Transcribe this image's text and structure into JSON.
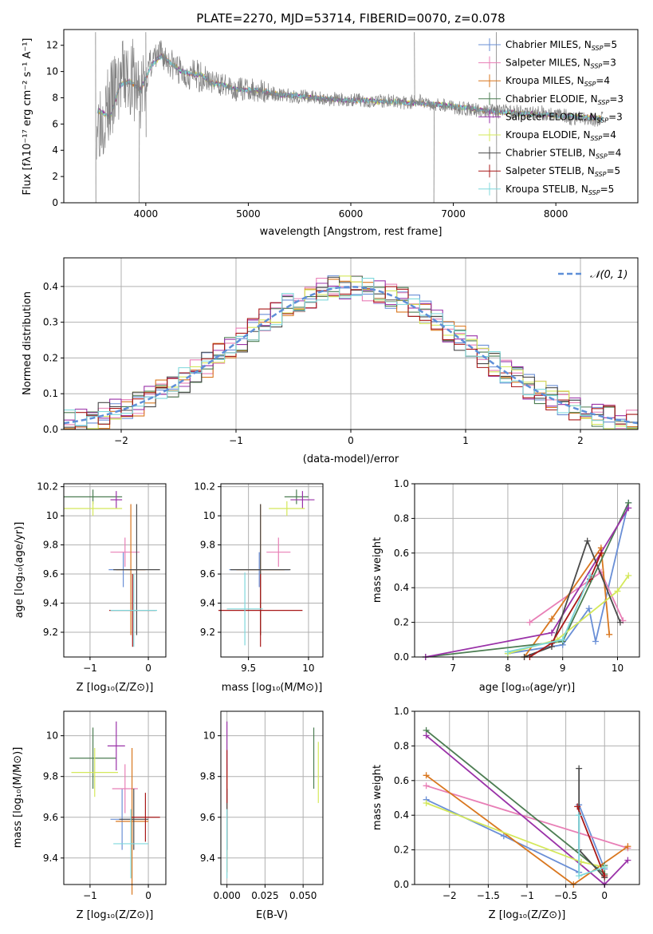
{
  "colors": {
    "c0": "#6a8fd6",
    "c1": "#e87fb6",
    "c2": "#d9771f",
    "c3": "#4c7d52",
    "c4": "#9a32a8",
    "c5": "#d4e85a",
    "c6": "#4a4a4a",
    "c7": "#a81818",
    "c8": "#7fd8dc",
    "grid": "#b0b0b0"
  },
  "legend_spectrum": [
    {
      "prefix": "Chabrier MILES, N",
      "sub": "SSP",
      "suffix": "=5",
      "color": "c0"
    },
    {
      "prefix": "Salpeter MILES, N",
      "sub": "SSP",
      "suffix": "=3",
      "color": "c1"
    },
    {
      "prefix": "Kroupa MILES, N",
      "sub": "SSP",
      "suffix": "=4",
      "color": "c2"
    },
    {
      "prefix": "Chabrier ELODIE, N",
      "sub": "SSP",
      "suffix": "=3",
      "color": "c3"
    },
    {
      "prefix": "Salpeter ELODIE, N",
      "sub": "SSP",
      "suffix": "=3",
      "color": "c4"
    },
    {
      "prefix": "Kroupa ELODIE, N",
      "sub": "SSP",
      "suffix": "=4",
      "color": "c5"
    },
    {
      "prefix": "Chabrier STELIB, N",
      "sub": "SSP",
      "suffix": "=4",
      "color": "c6"
    },
    {
      "prefix": "Salpeter STELIB, N",
      "sub": "SSP",
      "suffix": "=5",
      "color": "c7"
    },
    {
      "prefix": "Kroupa STELIB, N",
      "sub": "SSP",
      "suffix": "=5",
      "color": "c8"
    }
  ],
  "chart_data": [
    {
      "id": "spectrum",
      "type": "line",
      "title": "PLATE=2270, MJD=53714, FIBERID=0070, z=0.078",
      "xlabel": "wavelength [Angstrom, rest frame]",
      "ylabel": "Flux [fλ10⁻¹⁷ erg cm⁻² s⁻¹ A⁻¹]",
      "xlim": [
        3200,
        8800
      ],
      "ylim": [
        0,
        13.2
      ],
      "xticks": [
        4000,
        5000,
        6000,
        7000,
        8000
      ],
      "yticks": [
        0,
        2,
        4,
        6,
        8,
        10,
        12
      ],
      "series": [
        {
          "name": "observed spectrum",
          "color": "#808080",
          "x": [
            3550,
            3650,
            3750,
            3850,
            3950,
            4050,
            4150,
            4250,
            4350,
            4450,
            4550,
            4650,
            4750,
            4850,
            4950,
            5050,
            5150,
            5250,
            5350,
            5450,
            5550,
            5650,
            5750,
            5850,
            5950,
            6050,
            6150,
            6250,
            6350,
            6450,
            6550,
            6650,
            6750,
            6850,
            6950,
            7050,
            7150,
            7250,
            7350,
            7450,
            7550,
            7650,
            7750,
            7850,
            7950,
            8050,
            8150,
            8250,
            8350,
            8450
          ],
          "y": [
            6.5,
            7.4,
            9.3,
            9.6,
            8.2,
            10.7,
            11.3,
            10.6,
            9.9,
            9.8,
            9.6,
            9.2,
            9.0,
            8.6,
            8.7,
            8.6,
            8.5,
            8.3,
            8.2,
            8.1,
            8.1,
            8.0,
            7.9,
            7.9,
            7.8,
            7.8,
            7.8,
            7.8,
            7.8,
            7.7,
            7.6,
            7.8,
            7.6,
            7.5,
            7.4,
            7.2,
            7.2,
            7.0,
            7.0,
            6.9,
            7.0,
            6.9,
            6.8,
            6.9,
            6.7,
            6.8,
            6.4,
            6.5,
            6.3,
            6.4
          ]
        },
        {
          "name": "model",
          "color": "#7fd8dc",
          "x": [
            3550,
            3650,
            3750,
            3850,
            3950,
            4050,
            4150,
            4250,
            4350,
            4450,
            4550,
            4650,
            4750,
            4850,
            4950,
            5050,
            5150,
            5250,
            5350,
            5450,
            5550,
            5650,
            5750,
            5850,
            5950,
            6050,
            6150,
            6250,
            6350,
            6450,
            6550,
            6650,
            6750,
            6850,
            6950,
            7050,
            7150,
            7250,
            7350,
            7450,
            7550,
            7650,
            7750,
            7850,
            7950,
            8050,
            8150,
            8250,
            8350,
            8450
          ],
          "y": [
            7.0,
            6.5,
            9.0,
            9.2,
            8.6,
            10.4,
            11.2,
            10.6,
            10.0,
            9.8,
            9.7,
            9.1,
            9.0,
            8.7,
            8.6,
            8.6,
            8.5,
            8.3,
            8.2,
            8.2,
            8.1,
            8.0,
            7.9,
            7.9,
            7.8,
            7.8,
            7.8,
            7.7,
            7.7,
            7.7,
            7.6,
            7.6,
            7.5,
            7.5,
            7.4,
            7.3,
            7.2,
            7.1,
            7.0,
            6.9,
            6.9,
            6.8,
            6.8,
            6.7,
            6.7,
            6.6,
            6.6,
            6.5,
            6.5,
            6.4
          ]
        }
      ]
    },
    {
      "id": "residuals",
      "type": "line",
      "xlabel": "(data-model)/error",
      "ylabel": "Normed distribution",
      "xlim": [
        -2.5,
        2.5
      ],
      "ylim": [
        0,
        0.48
      ],
      "xticks": [
        -2,
        -1,
        0,
        1,
        2
      ],
      "yticks": [
        0.0,
        0.1,
        0.2,
        0.3,
        0.4
      ],
      "legend": "𝒩(0, 1)",
      "series": [
        {
          "name": "normal",
          "mu": 0,
          "sigma": 1
        }
      ]
    },
    {
      "id": "age-vs-Z",
      "type": "scatter",
      "xlabel": "Z [log₁₀(Z/Z⊙)]",
      "ylabel": "age  [log₁₀(age/yr)]",
      "xlim": [
        -1.45,
        0.3
      ],
      "ylim": [
        9.03,
        10.22
      ],
      "xticks": [
        -1,
        0
      ],
      "yticks": [
        9.2,
        9.4,
        9.6,
        9.8,
        10.0,
        10.2
      ],
      "points": [
        {
          "x": -0.43,
          "y": 9.63,
          "xe": 0.25,
          "ye": 0.12,
          "color": "c0"
        },
        {
          "x": -0.4,
          "y": 9.75,
          "xe": 0.25,
          "ye": 0.1,
          "color": "c1"
        },
        {
          "x": -0.3,
          "y": 9.63,
          "xe": 0.25,
          "ye": 0.45,
          "color": "c2"
        },
        {
          "x": -0.95,
          "y": 10.13,
          "xe": 0.5,
          "ye": 0.05,
          "color": "c3"
        },
        {
          "x": -0.55,
          "y": 10.11,
          "xe": 0.1,
          "ye": 0.06,
          "color": "c4"
        },
        {
          "x": -0.95,
          "y": 10.05,
          "xe": 0.5,
          "ye": 0.05,
          "color": "c5"
        },
        {
          "x": -0.2,
          "y": 9.63,
          "xe": 0.4,
          "ye": 0.45,
          "color": "c6"
        },
        {
          "x": -0.27,
          "y": 9.35,
          "xe": 0.4,
          "ye": 0.25,
          "color": "c7"
        },
        {
          "x": -0.25,
          "y": 9.35,
          "xe": 0.4,
          "ye": 0.25,
          "color": "c8"
        }
      ]
    },
    {
      "id": "age-vs-mass",
      "type": "scatter",
      "xlabel": "mass [log₁₀(M/M⊙)]",
      "xlim": [
        9.27,
        10.12
      ],
      "ylim": [
        9.03,
        10.22
      ],
      "xticks": [
        9.5,
        10.0
      ],
      "yticks": [
        9.2,
        9.4,
        9.6,
        9.8,
        10.0,
        10.2
      ],
      "points": [
        {
          "x": 9.59,
          "y": 9.63,
          "xe": 0.25,
          "ye": 0.12,
          "color": "c0"
        },
        {
          "x": 9.75,
          "y": 9.75,
          "xe": 0.1,
          "ye": 0.1,
          "color": "c1"
        },
        {
          "x": 9.6,
          "y": 9.63,
          "xe": 0.2,
          "ye": 0.45,
          "color": "c2"
        },
        {
          "x": 9.9,
          "y": 10.13,
          "xe": 0.1,
          "ye": 0.05,
          "color": "c3"
        },
        {
          "x": 9.95,
          "y": 10.11,
          "xe": 0.1,
          "ye": 0.06,
          "color": "c4"
        },
        {
          "x": 9.82,
          "y": 10.05,
          "xe": 0.15,
          "ye": 0.05,
          "color": "c5"
        },
        {
          "x": 9.6,
          "y": 9.63,
          "xe": 0.25,
          "ye": 0.45,
          "color": "c6"
        },
        {
          "x": 9.6,
          "y": 9.35,
          "xe": 0.35,
          "ye": 0.25,
          "color": "c7"
        },
        {
          "x": 9.47,
          "y": 9.36,
          "xe": 0.15,
          "ye": 0.25,
          "color": "c8"
        }
      ]
    },
    {
      "id": "massweight-vs-age",
      "type": "line",
      "xlabel": "age  [log₁₀(age/yr)]",
      "ylabel": "mass weight",
      "xlim": [
        6.3,
        10.4
      ],
      "ylim": [
        0,
        1.0
      ],
      "xticks": [
        7,
        8,
        9,
        10
      ],
      "yticks": [
        0.0,
        0.2,
        0.4,
        0.6,
        0.8,
        1.0
      ],
      "series": [
        {
          "color": "c0",
          "x": [
            8.0,
            9.0,
            9.48,
            9.6,
            10.2
          ],
          "y": [
            0.02,
            0.07,
            0.28,
            0.09,
            0.89
          ]
        },
        {
          "color": "c1",
          "x": [
            8.4,
            9.7,
            10.1
          ],
          "y": [
            0.2,
            0.49,
            0.21
          ]
        },
        {
          "color": "c2",
          "x": [
            8.3,
            8.8,
            9.7,
            9.85
          ],
          "y": [
            0.0,
            0.22,
            0.63,
            0.13
          ]
        },
        {
          "color": "c3",
          "x": [
            6.5,
            9.0,
            10.2
          ],
          "y": [
            0.0,
            0.09,
            0.89
          ]
        },
        {
          "color": "c4",
          "x": [
            6.5,
            8.8,
            10.2
          ],
          "y": [
            0.0,
            0.14,
            0.86
          ]
        },
        {
          "color": "c5",
          "x": [
            8.0,
            8.9,
            10.0,
            10.2
          ],
          "y": [
            0.02,
            0.1,
            0.38,
            0.47
          ]
        },
        {
          "color": "c6",
          "x": [
            8.3,
            8.8,
            9.45,
            10.05
          ],
          "y": [
            0.0,
            0.06,
            0.67,
            0.2
          ]
        },
        {
          "color": "c7",
          "x": [
            8.4,
            8.8,
            9.5,
            9.7
          ],
          "y": [
            0.0,
            0.08,
            0.45,
            0.6
          ]
        },
        {
          "color": "c8",
          "x": [
            8.0,
            9.0,
            9.5
          ],
          "y": [
            0.03,
            0.1,
            0.47
          ]
        }
      ]
    },
    {
      "id": "mass-vs-Z",
      "type": "scatter",
      "xlabel": "Z [log₁₀(Z/Z⊙)]",
      "ylabel": "mass [log₁₀(M/M⊙)]",
      "xlim": [
        -1.45,
        0.3
      ],
      "ylim": [
        9.27,
        10.12
      ],
      "xticks": [
        -1,
        0
      ],
      "yticks": [
        9.4,
        9.6,
        9.8,
        10.0
      ],
      "points": [
        {
          "x": -0.45,
          "y": 9.59,
          "xe": 0.2,
          "ye": 0.15,
          "color": "c0"
        },
        {
          "x": -0.4,
          "y": 9.74,
          "xe": 0.22,
          "ye": 0.12,
          "color": "c1"
        },
        {
          "x": -0.28,
          "y": 9.58,
          "xe": 0.28,
          "ye": 0.36,
          "color": "c2"
        },
        {
          "x": -0.95,
          "y": 9.89,
          "xe": 0.4,
          "ye": 0.15,
          "color": "c3"
        },
        {
          "x": -0.55,
          "y": 9.95,
          "xe": 0.15,
          "ye": 0.12,
          "color": "c4"
        },
        {
          "x": -0.92,
          "y": 9.82,
          "xe": 0.4,
          "ye": 0.12,
          "color": "c5"
        },
        {
          "x": -0.25,
          "y": 9.59,
          "xe": 0.25,
          "ye": 0.15,
          "color": "c6"
        },
        {
          "x": -0.05,
          "y": 9.6,
          "xe": 0.25,
          "ye": 0.12,
          "color": "c7"
        },
        {
          "x": -0.3,
          "y": 9.47,
          "xe": 0.3,
          "ye": 0.17,
          "color": "c8"
        }
      ]
    },
    {
      "id": "mass-vs-EBV",
      "type": "scatter",
      "xlabel": "E(B-V)",
      "xlim": [
        -0.004,
        0.063
      ],
      "ylim": [
        9.27,
        10.12
      ],
      "xticks": [
        0.0,
        0.025,
        0.05
      ],
      "xticklabels": [
        "0.000",
        "0.025",
        "0.050"
      ],
      "yticks": [
        9.4,
        9.6,
        9.8,
        10.0
      ],
      "points": [
        {
          "x": 0.0,
          "y": 9.59,
          "ye": 0.15,
          "color": "c0"
        },
        {
          "x": 0.0,
          "y": 9.74,
          "ye": 0.12,
          "color": "c1"
        },
        {
          "x": 0.0,
          "y": 9.58,
          "ye": 0.25,
          "color": "c2"
        },
        {
          "x": 0.057,
          "y": 9.89,
          "ye": 0.15,
          "color": "c3"
        },
        {
          "x": 0.0,
          "y": 9.95,
          "ye": 0.12,
          "color": "c4"
        },
        {
          "x": 0.06,
          "y": 9.82,
          "ye": 0.15,
          "color": "c5"
        },
        {
          "x": 0.0,
          "y": 9.59,
          "ye": 0.15,
          "color": "c6"
        },
        {
          "x": 0.0,
          "y": 9.8,
          "ye": 0.13,
          "color": "c7"
        },
        {
          "x": 0.0,
          "y": 9.47,
          "ye": 0.17,
          "color": "c8"
        }
      ]
    },
    {
      "id": "massweight-vs-Z",
      "type": "line",
      "xlabel": "Z [log₁₀(Z/Z⊙)]",
      "ylabel": "mass weight",
      "xlim": [
        -2.45,
        0.45
      ],
      "ylim": [
        0,
        1.0
      ],
      "xticks": [
        -2.0,
        -1.5,
        -1.0,
        -0.5,
        0.0
      ],
      "yticks": [
        0.0,
        0.2,
        0.4,
        0.6,
        0.8,
        1.0
      ],
      "series": [
        {
          "color": "c0",
          "x": [
            -2.3,
            -1.3,
            -0.33,
            -0.33,
            0.0
          ],
          "y": [
            0.49,
            0.28,
            0.07,
            0.46,
            0.09
          ]
        },
        {
          "color": "c1",
          "x": [
            -2.3,
            0.3
          ],
          "y": [
            0.57,
            0.21
          ]
        },
        {
          "color": "c2",
          "x": [
            -2.3,
            -0.4,
            0.3
          ],
          "y": [
            0.63,
            0.0,
            0.22
          ]
        },
        {
          "color": "c3",
          "x": [
            -2.3,
            0.0,
            0.0
          ],
          "y": [
            0.89,
            0.06,
            0.11
          ]
        },
        {
          "color": "c4",
          "x": [
            -2.3,
            0.0,
            0.3
          ],
          "y": [
            0.86,
            0.0,
            0.14
          ]
        },
        {
          "color": "c5",
          "x": [
            -2.3,
            -0.3,
            0.0
          ],
          "y": [
            0.47,
            0.13,
            0.1
          ]
        },
        {
          "color": "c6",
          "x": [
            -0.33,
            -0.33,
            0.0
          ],
          "y": [
            0.67,
            0.2,
            0.04
          ]
        },
        {
          "color": "c7",
          "x": [
            -0.35,
            0.0
          ],
          "y": [
            0.45,
            0.05
          ]
        },
        {
          "color": "c8",
          "x": [
            -0.33,
            -0.33,
            0.0
          ],
          "y": [
            0.4,
            0.05,
            0.1
          ]
        }
      ]
    }
  ]
}
